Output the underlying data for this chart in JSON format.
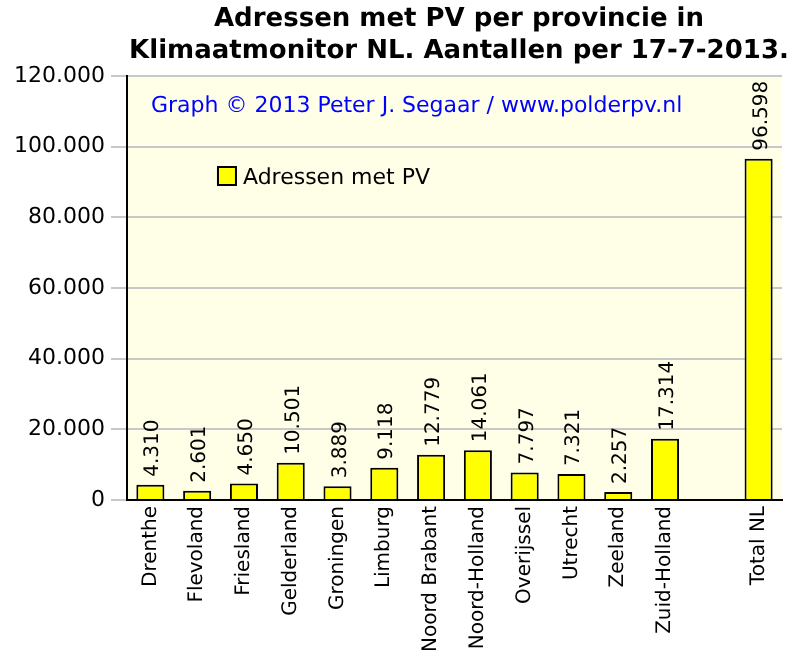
{
  "chart_data": {
    "type": "bar",
    "title": "Adressen met PV per provincie in Klimaatmonitor  NL. Aantallen per 17-7-2013.",
    "categories": [
      "Drenthe",
      "Flevoland",
      "Friesland",
      "Gelderland",
      "Groningen",
      "Limburg",
      "Noord Brabant",
      "Noord-Holland",
      "Overijssel",
      "Utrecht",
      "Zeeland",
      "Zuid-Holland",
      null,
      "Total NL"
    ],
    "series": [
      {
        "name": "Adressen met PV",
        "color": "#ffff00",
        "values": [
          4310,
          2601,
          4650,
          10501,
          3889,
          9118,
          12779,
          14061,
          7797,
          7321,
          2257,
          17314,
          null,
          96598
        ],
        "value_labels": [
          "4.310",
          "2.601",
          "4.650",
          "10.501",
          "3.889",
          "9.118",
          "12.779",
          "14.061",
          "7.797",
          "7.321",
          "2.257",
          "17.314",
          null,
          "96.598"
        ]
      }
    ],
    "ylim": [
      0,
      120000
    ],
    "yticks": [
      {
        "value": 0,
        "label": "0"
      },
      {
        "value": 20000,
        "label": "20.000"
      },
      {
        "value": 40000,
        "label": "40.000"
      },
      {
        "value": 60000,
        "label": "60.000"
      },
      {
        "value": 80000,
        "label": "80.000"
      },
      {
        "value": 100000,
        "label": "100.000"
      },
      {
        "value": 120000,
        "label": "120.000"
      }
    ],
    "grid": "y",
    "legend": "top left",
    "annotations": [
      "Graph © 2013 Peter J. Segaar / www.polderpv.nl"
    ]
  }
}
